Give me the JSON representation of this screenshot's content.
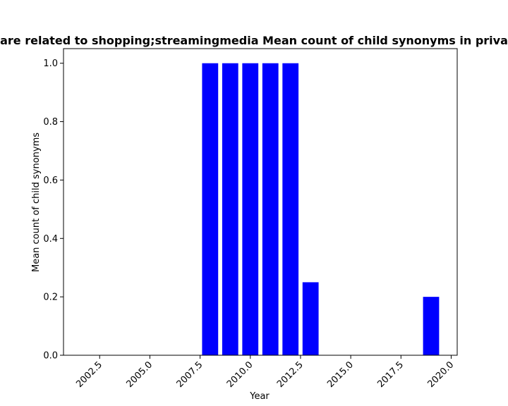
{
  "chart_data": {
    "type": "bar",
    "title": "are related to shopping;streamingmedia Mean count of child synonyms in priva",
    "xlabel": "Year",
    "ylabel": "Mean count of child synonyms",
    "x": [
      2008,
      2009,
      2010,
      2011,
      2012,
      2013,
      2019
    ],
    "values": [
      1.0,
      1.0,
      1.0,
      1.0,
      1.0,
      0.25,
      0.2
    ],
    "xlim": [
      2000.7,
      2020.3
    ],
    "ylim": [
      0,
      1.05
    ],
    "bar_color": "#0000ff",
    "grid": false,
    "xticks": [
      2002.5,
      2005.0,
      2007.5,
      2010.0,
      2012.5,
      2015.0,
      2017.5,
      2020.0
    ],
    "xtick_labels": [
      "2002.5",
      "2005.0",
      "2007.5",
      "2010.0",
      "2012.5",
      "2015.0",
      "2017.5",
      "2020.0"
    ],
    "yticks": [
      0.0,
      0.2,
      0.4,
      0.6,
      0.8,
      1.0
    ],
    "ytick_labels": [
      "0.0",
      "0.2",
      "0.4",
      "0.6",
      "0.8",
      "1.0"
    ]
  }
}
